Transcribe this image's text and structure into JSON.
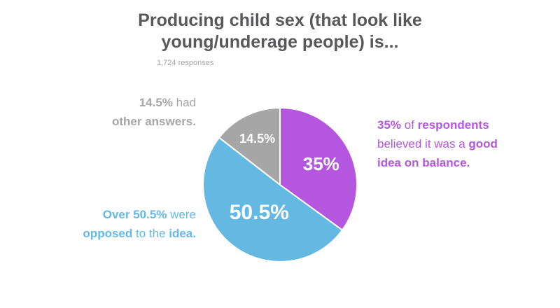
{
  "title": {
    "line1": "Producing child sex (that look like",
    "line2": "young/underage people) is..."
  },
  "subtitle": "1,724 responses",
  "callouts": {
    "good": {
      "p1": "35%",
      "t1": " of ",
      "p2": "respondents",
      "t2": " believed it was a ",
      "p3": "good",
      "p4": "idea on balance."
    },
    "opposed": {
      "p1": "Over 50.5%",
      "t1": " were",
      "p2": "opposed",
      "t2": " to the ",
      "p3": "idea."
    },
    "other": {
      "p1": "14.5%",
      "t1": " had",
      "p2": "other answers."
    }
  },
  "colors": {
    "good": "#b556de",
    "opposed": "#64b9e3",
    "other": "#a6a6a6",
    "title": "#58585a"
  },
  "chart_data": {
    "type": "pie",
    "title": "Producing child sex (that look like young/underage people) is...",
    "subtitle": "1,724 responses",
    "slices": [
      {
        "key": "good",
        "value": 35,
        "label": "35%",
        "color": "#b556de"
      },
      {
        "key": "opposed",
        "value": 50.5,
        "label": "50.5%",
        "color": "#64b9e3"
      },
      {
        "key": "other",
        "value": 14.5,
        "label": "14.5%",
        "color": "#a6a6a6"
      }
    ]
  }
}
